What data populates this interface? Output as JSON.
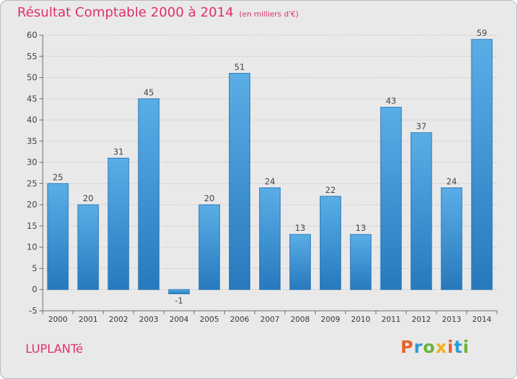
{
  "header": {
    "title": "Résultat Comptable 2000 à 2014",
    "subtitle": "(en milliers d'€)"
  },
  "footer": {
    "commune": "LUPLANTé",
    "logo": "Proxiti"
  },
  "colors": {
    "title": "#e0306a",
    "bar_light": "#5aaee6",
    "bar_dark": "#2779bd",
    "background": "#e9e9e9"
  },
  "chart_data": {
    "type": "bar",
    "title": "Résultat Comptable 2000 à 2014",
    "subtitle": "(en milliers d'€)",
    "categories": [
      "2000",
      "2001",
      "2002",
      "2003",
      "2004",
      "2005",
      "2006",
      "2007",
      "2008",
      "2009",
      "2010",
      "2011",
      "2012",
      "2013",
      "2014"
    ],
    "values": [
      25,
      20,
      31,
      45,
      -1,
      20,
      51,
      24,
      13,
      22,
      13,
      43,
      37,
      24,
      59
    ],
    "ylim": [
      -5,
      60
    ],
    "yticks": [
      -5,
      0,
      5,
      10,
      15,
      20,
      25,
      30,
      35,
      40,
      45,
      50,
      55,
      60
    ],
    "grid": true,
    "data_labels": true
  }
}
